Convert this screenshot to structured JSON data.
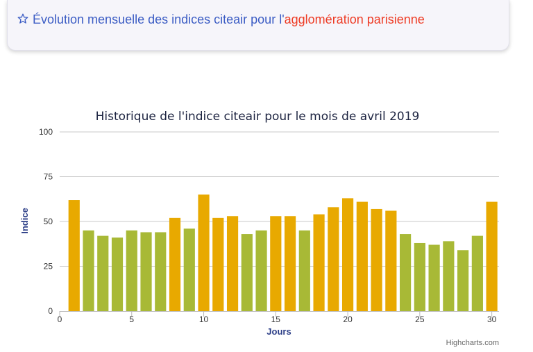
{
  "header": {
    "icon": "star-icon",
    "title_prefix": "Évolution mensuelle des indices citeair pour l'",
    "title_highlight": "agglomération parisienne"
  },
  "colors": {
    "header_blue": "#3b5cc4",
    "header_red": "#ee3b24",
    "bar_green": "#a8b936",
    "bar_orange": "#e8a900",
    "axis_title": "#2c3e87"
  },
  "chart_data": {
    "type": "bar",
    "title": "Historique de l'indice citeair pour le mois de avril 2019",
    "xlabel": "Jours",
    "ylabel": "Indice",
    "credits": "Highcharts.com",
    "xlim": [
      0,
      30.5
    ],
    "ylim": [
      0,
      100
    ],
    "x_ticks": [
      0,
      5,
      10,
      15,
      20,
      25,
      30
    ],
    "y_ticks": [
      0,
      25,
      50,
      75,
      100
    ],
    "grid": true,
    "legend": "none",
    "x": [
      1,
      2,
      3,
      4,
      5,
      6,
      7,
      8,
      9,
      10,
      11,
      12,
      13,
      14,
      15,
      16,
      17,
      18,
      19,
      20,
      21,
      22,
      23,
      24,
      25,
      26,
      27,
      28,
      29,
      30
    ],
    "values": [
      62,
      45,
      42,
      41,
      45,
      44,
      44,
      52,
      46,
      65,
      52,
      53,
      43,
      45,
      53,
      53,
      45,
      54,
      58,
      63,
      61,
      57,
      56,
      43,
      38,
      37,
      39,
      34,
      42,
      61
    ],
    "colors": [
      "orange",
      "green",
      "green",
      "green",
      "green",
      "green",
      "green",
      "orange",
      "green",
      "orange",
      "orange",
      "orange",
      "green",
      "green",
      "orange",
      "orange",
      "green",
      "orange",
      "orange",
      "orange",
      "orange",
      "orange",
      "orange",
      "green",
      "green",
      "green",
      "green",
      "green",
      "green",
      "orange"
    ]
  }
}
